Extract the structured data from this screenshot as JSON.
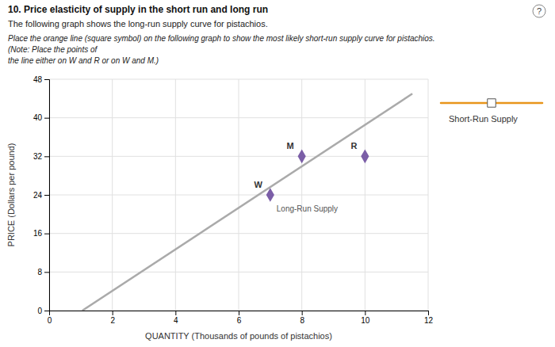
{
  "chart_data": {
    "type": "line",
    "title": "10. Price elasticity of supply in the short run and long run",
    "subtitle": [
      "The following graph shows the long-run supply curve for pistachios.",
      "Place the orange line (square symbol) on the following graph to show the most likely short-run supply curve for pistachios.",
      "(Note: Place the points of",
      "the line either on W and R or on W and M.)"
    ],
    "xlabel": "QUANTITY (Thousands of pounds of pistachios)",
    "ylabel": "PRICE (Dollars per pound)",
    "xlim": [
      0,
      12
    ],
    "ylim": [
      0,
      48
    ],
    "xticks": [
      0,
      2,
      4,
      6,
      8,
      10,
      12
    ],
    "yticks": [
      0,
      8,
      16,
      24,
      32,
      40,
      48
    ],
    "grid": true,
    "legend": "right",
    "series": [
      {
        "type": "line",
        "color": "#aaaaaa",
        "x": [
          1.05,
          11.5
        ],
        "values": [
          0.0,
          45.0
        ]
      },
      {
        "type": "scatter",
        "color": "#7B5EA7",
        "marker": "diamond",
        "x": [
          7.0,
          8.0,
          10.0
        ],
        "values": [
          24,
          32,
          32
        ],
        "labels": [
          "W",
          "M",
          "R"
        ]
      },
      {
        "name": "Short-Run Supply",
        "type": "line",
        "color": "#E8951A",
        "marker": "square",
        "x": [],
        "values": []
      }
    ],
    "annotations": [
      {
        "text": "Long-Run Supply",
        "x": 7.2,
        "y": 20.5
      },
      {
        "text": "?"
      }
    ]
  }
}
